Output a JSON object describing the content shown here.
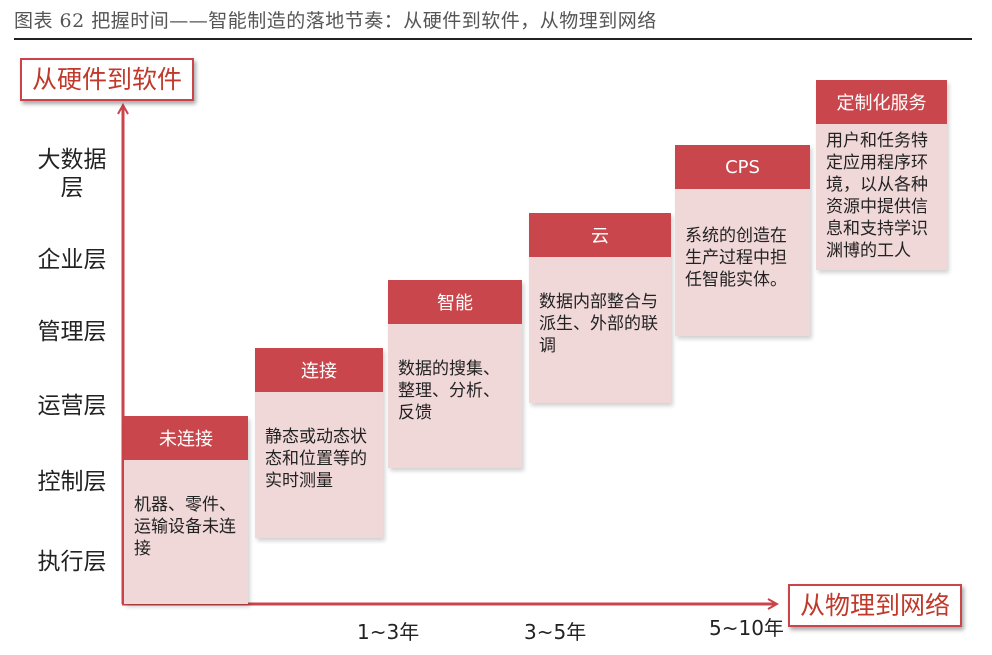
{
  "figure": {
    "title": "图表 62   把握时间——智能制造的落地节奏：从硬件到软件，从物理到网络"
  },
  "axes": {
    "y_label": "从硬件到软件",
    "x_label": "从物理到网络"
  },
  "layers": [
    "大数据层",
    "企业层",
    "管理层",
    "运营层",
    "控制层",
    "执行层"
  ],
  "stages": [
    {
      "header": "未连接",
      "body": "机器、零件、运输设备未连接"
    },
    {
      "header": "连接",
      "body": "静态或动态状态和位置等的实时测量"
    },
    {
      "header": "智能",
      "body": "数据的搜集、整理、分析、反馈"
    },
    {
      "header": "云",
      "body": "数据内部整合与派生、外部的联调"
    },
    {
      "header": "CPS",
      "body": "系统的创造在生产过程中担任智能实体。"
    },
    {
      "header": "定制化服务",
      "body": "用户和任务特定应用程序环境，以从各种资源中提供信息和支持学识渊博的工人"
    }
  ],
  "timeline": [
    "1~3年",
    "3~5年",
    "5~10年"
  ],
  "colors": {
    "accent": "#c9474c",
    "body_fill": "#f0d7d8",
    "axis": "#c9444b"
  }
}
